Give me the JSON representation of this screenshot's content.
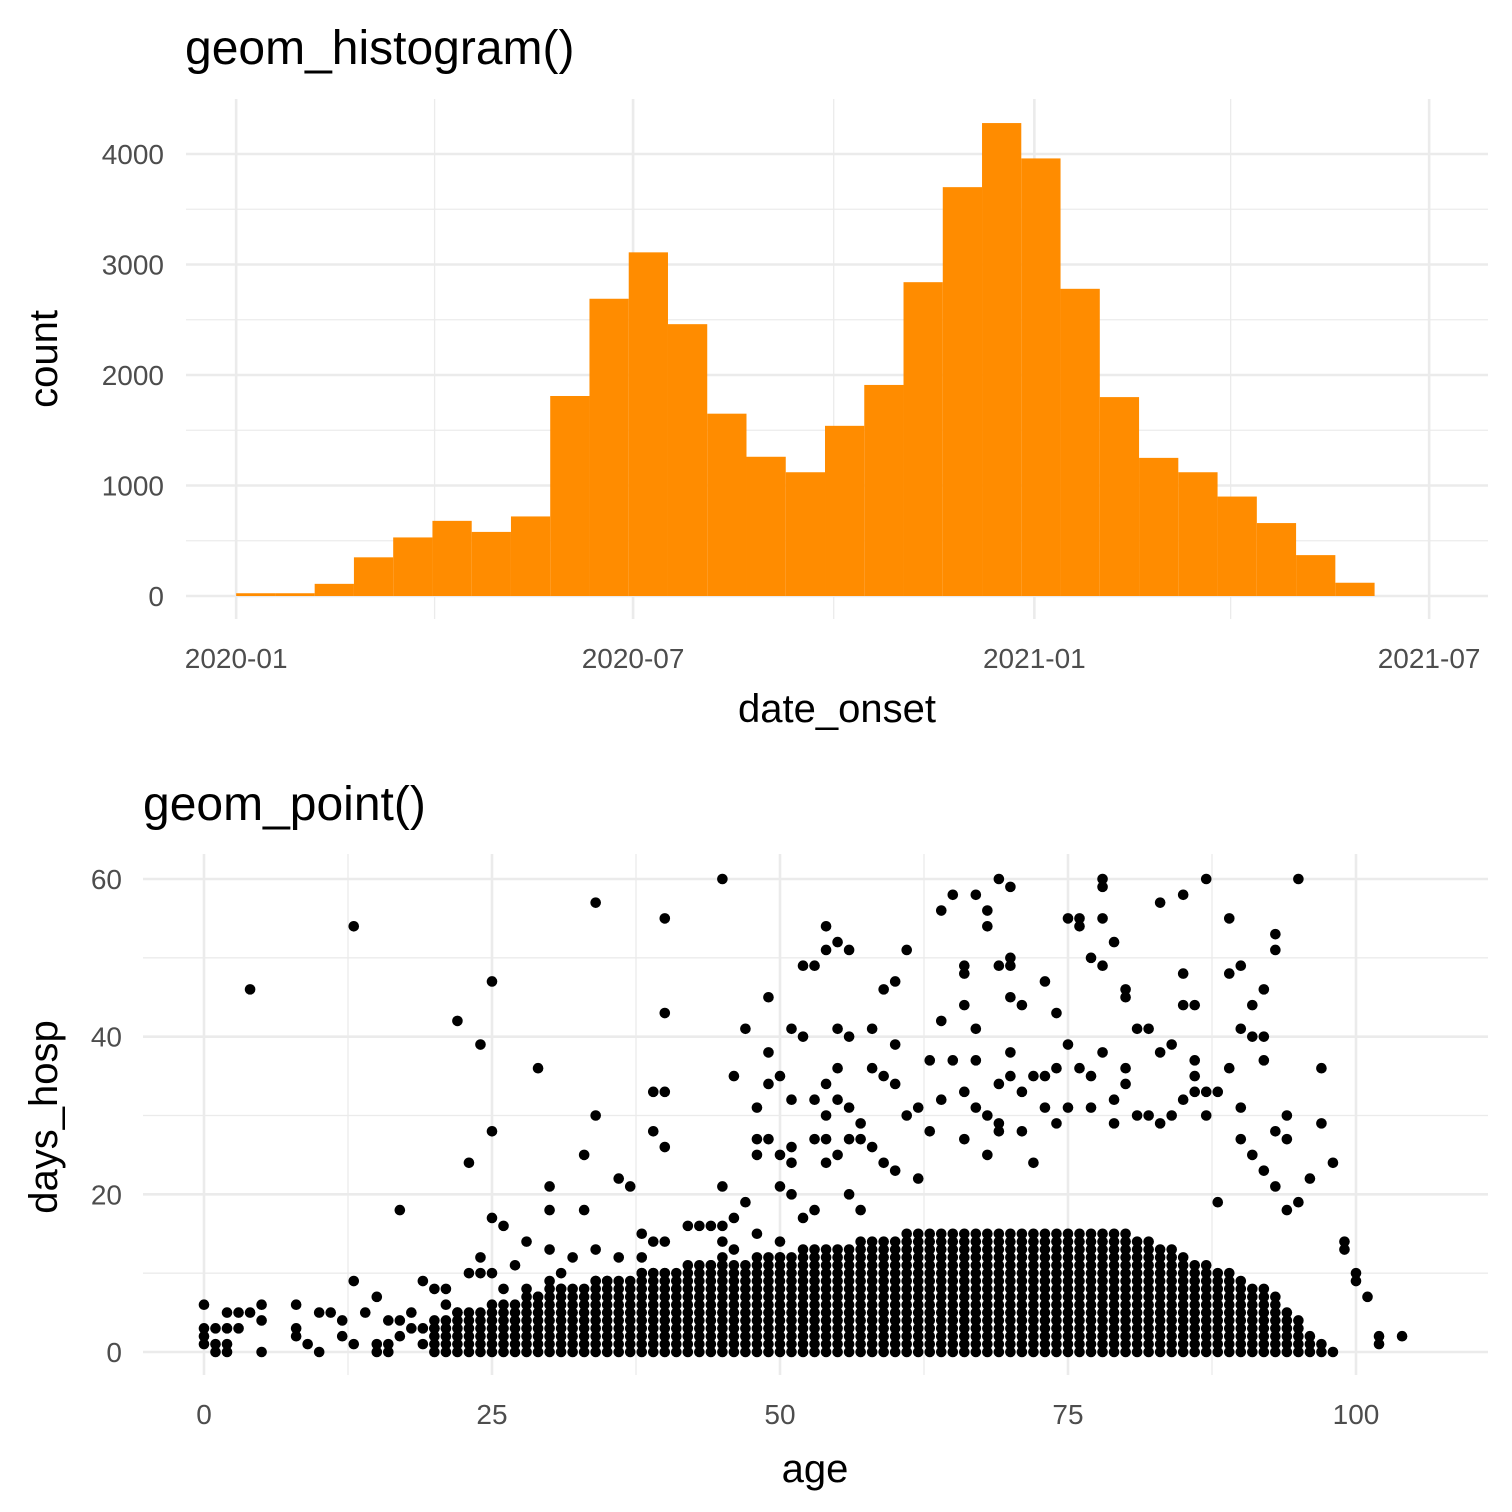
{
  "chart_data": [
    {
      "type": "bar",
      "subtype": "histogram",
      "title": "geom_histogram()",
      "xlabel": "date_onset",
      "ylabel": "count",
      "x_ticks": [
        "2020-01",
        "2020-07",
        "2021-01",
        "2021-07"
      ],
      "y_ticks": [
        "0",
        "1000",
        "2000",
        "3000",
        "4000"
      ],
      "ylim": [
        0,
        4400
      ],
      "grid": true,
      "fill_color": "#ff8c00",
      "bins": [
        {
          "start": "2020-01-01",
          "end": "2020-01-19",
          "count": 25
        },
        {
          "start": "2020-01-19",
          "end": "2020-02-06",
          "count": 25
        },
        {
          "start": "2020-02-06",
          "end": "2020-02-24",
          "count": 110
        },
        {
          "start": "2020-02-24",
          "end": "2020-03-13",
          "count": 350
        },
        {
          "start": "2020-03-13",
          "end": "2020-03-31",
          "count": 530
        },
        {
          "start": "2020-03-31",
          "end": "2020-04-18",
          "count": 680
        },
        {
          "start": "2020-04-18",
          "end": "2020-05-06",
          "count": 580
        },
        {
          "start": "2020-05-06",
          "end": "2020-05-24",
          "count": 720
        },
        {
          "start": "2020-05-24",
          "end": "2020-06-11",
          "count": 1810
        },
        {
          "start": "2020-06-11",
          "end": "2020-06-29",
          "count": 2690
        },
        {
          "start": "2020-06-29",
          "end": "2020-07-17",
          "count": 3110
        },
        {
          "start": "2020-07-17",
          "end": "2020-08-04",
          "count": 2460
        },
        {
          "start": "2020-08-04",
          "end": "2020-08-22",
          "count": 1650
        },
        {
          "start": "2020-08-22",
          "end": "2020-09-09",
          "count": 1260
        },
        {
          "start": "2020-09-09",
          "end": "2020-09-27",
          "count": 1120
        },
        {
          "start": "2020-09-27",
          "end": "2020-10-15",
          "count": 1540
        },
        {
          "start": "2020-10-15",
          "end": "2020-11-02",
          "count": 1910
        },
        {
          "start": "2020-11-02",
          "end": "2020-11-20",
          "count": 2840
        },
        {
          "start": "2020-11-20",
          "end": "2020-12-08",
          "count": 3700
        },
        {
          "start": "2020-12-08",
          "end": "2020-12-26",
          "count": 4280
        },
        {
          "start": "2020-12-26",
          "end": "2021-01-13",
          "count": 3960
        },
        {
          "start": "2021-01-13",
          "end": "2021-01-31",
          "count": 2780
        },
        {
          "start": "2021-01-31",
          "end": "2021-02-18",
          "count": 1800
        },
        {
          "start": "2021-02-18",
          "end": "2021-03-08",
          "count": 1250
        },
        {
          "start": "2021-03-08",
          "end": "2021-03-26",
          "count": 1120
        },
        {
          "start": "2021-03-26",
          "end": "2021-04-13",
          "count": 900
        },
        {
          "start": "2021-04-13",
          "end": "2021-05-01",
          "count": 660
        },
        {
          "start": "2021-05-01",
          "end": "2021-05-19",
          "count": 370
        },
        {
          "start": "2021-05-19",
          "end": "2021-06-06",
          "count": 120
        }
      ]
    },
    {
      "type": "scatter",
      "title": "geom_point()",
      "xlabel": "age",
      "ylabel": "days_hosp",
      "x_ticks": [
        "0",
        "25",
        "50",
        "75",
        "100"
      ],
      "y_ticks": [
        "0",
        "20",
        "40",
        "60"
      ],
      "xlim": [
        -2.5,
        109
      ],
      "ylim": [
        -1.5,
        63
      ],
      "grid": true,
      "point_color": "#000000",
      "points": [
        [
          0,
          6
        ],
        [
          0,
          3
        ],
        [
          0,
          2
        ],
        [
          0,
          1
        ],
        [
          1,
          3
        ],
        [
          1,
          1
        ],
        [
          1,
          0
        ],
        [
          2,
          5
        ],
        [
          2,
          3
        ],
        [
          2,
          1
        ],
        [
          2,
          0
        ],
        [
          3,
          5
        ],
        [
          3,
          3
        ],
        [
          4,
          46
        ],
        [
          4,
          5
        ],
        [
          5,
          6
        ],
        [
          5,
          4
        ],
        [
          5,
          0
        ],
        [
          8,
          6
        ],
        [
          8,
          3
        ],
        [
          8,
          2
        ],
        [
          9,
          1
        ],
        [
          10,
          0
        ],
        [
          10,
          5
        ],
        [
          11,
          5
        ],
        [
          12,
          4
        ],
        [
          12,
          2
        ],
        [
          13,
          54
        ],
        [
          13,
          9
        ],
        [
          13,
          1
        ],
        [
          14,
          5
        ],
        [
          15,
          7
        ],
        [
          15,
          1
        ],
        [
          15,
          0
        ],
        [
          16,
          4
        ],
        [
          16,
          1
        ],
        [
          16,
          0
        ],
        [
          17,
          18
        ],
        [
          17,
          4
        ],
        [
          17,
          2
        ],
        [
          18,
          5
        ],
        [
          18,
          3
        ],
        [
          19,
          9
        ],
        [
          19,
          3
        ],
        [
          19,
          1
        ],
        [
          20,
          8
        ],
        [
          20,
          3
        ],
        [
          21,
          8
        ],
        [
          21,
          6
        ],
        [
          22,
          42
        ],
        [
          22,
          5
        ],
        [
          23,
          24
        ],
        [
          23,
          10
        ],
        [
          24,
          39
        ],
        [
          24,
          12
        ],
        [
          24,
          10
        ],
        [
          25,
          47
        ],
        [
          25,
          28
        ],
        [
          25,
          17
        ],
        [
          25,
          10
        ],
        [
          26,
          16
        ],
        [
          26,
          8
        ],
        [
          27,
          11
        ],
        [
          28,
          14
        ],
        [
          28,
          8
        ],
        [
          29,
          36
        ],
        [
          29,
          7
        ],
        [
          30,
          21
        ],
        [
          30,
          18
        ],
        [
          30,
          13
        ],
        [
          30,
          9
        ],
        [
          31,
          10
        ],
        [
          31,
          8
        ],
        [
          32,
          12
        ],
        [
          33,
          25
        ],
        [
          33,
          18
        ],
        [
          34,
          57
        ],
        [
          34,
          30
        ],
        [
          34,
          13
        ],
        [
          34,
          9
        ],
        [
          35,
          9
        ],
        [
          36,
          22
        ],
        [
          36,
          12
        ],
        [
          37,
          21
        ],
        [
          38,
          15
        ],
        [
          38,
          12
        ],
        [
          38,
          10
        ],
        [
          39,
          33
        ],
        [
          39,
          28
        ],
        [
          39,
          14
        ],
        [
          39,
          10
        ],
        [
          40,
          55
        ],
        [
          40,
          43
        ],
        [
          40,
          33
        ],
        [
          40,
          26
        ],
        [
          40,
          14
        ],
        [
          40,
          10
        ],
        [
          41,
          8
        ],
        [
          42,
          16
        ],
        [
          43,
          16
        ],
        [
          44,
          16
        ],
        [
          44,
          11
        ],
        [
          45,
          60
        ],
        [
          45,
          21
        ],
        [
          45,
          16
        ],
        [
          45,
          14
        ],
        [
          45,
          12
        ],
        [
          45,
          11
        ],
        [
          46,
          35
        ],
        [
          46,
          17
        ],
        [
          46,
          13
        ],
        [
          47,
          41
        ],
        [
          47,
          19
        ],
        [
          48,
          31
        ],
        [
          48,
          27
        ],
        [
          48,
          25
        ],
        [
          48,
          15
        ],
        [
          49,
          45
        ],
        [
          49,
          38
        ],
        [
          49,
          34
        ],
        [
          49,
          27
        ],
        [
          50,
          35
        ],
        [
          50,
          25
        ],
        [
          50,
          21
        ],
        [
          50,
          14
        ],
        [
          50,
          12
        ],
        [
          51,
          41
        ],
        [
          51,
          32
        ],
        [
          51,
          26
        ],
        [
          51,
          24
        ],
        [
          51,
          20
        ],
        [
          52,
          49
        ],
        [
          52,
          40
        ],
        [
          52,
          17
        ],
        [
          53,
          49
        ],
        [
          53,
          32
        ],
        [
          53,
          27
        ],
        [
          53,
          18
        ],
        [
          54,
          54
        ],
        [
          54,
          51
        ],
        [
          54,
          34
        ],
        [
          54,
          30
        ],
        [
          54,
          27
        ],
        [
          54,
          24
        ],
        [
          55,
          52
        ],
        [
          55,
          41
        ],
        [
          55,
          36
        ],
        [
          55,
          32
        ],
        [
          55,
          25
        ],
        [
          56,
          51
        ],
        [
          56,
          40
        ],
        [
          56,
          31
        ],
        [
          56,
          27
        ],
        [
          56,
          20
        ],
        [
          57,
          29
        ],
        [
          57,
          27
        ],
        [
          57,
          18
        ],
        [
          58,
          41
        ],
        [
          58,
          36
        ],
        [
          58,
          26
        ],
        [
          59,
          46
        ],
        [
          59,
          35
        ],
        [
          59,
          24
        ],
        [
          60,
          47
        ],
        [
          60,
          39
        ],
        [
          60,
          34
        ],
        [
          60,
          23
        ],
        [
          61,
          51
        ],
        [
          61,
          30
        ],
        [
          62,
          31
        ],
        [
          62,
          22
        ],
        [
          63,
          37
        ],
        [
          63,
          28
        ],
        [
          64,
          56
        ],
        [
          64,
          42
        ],
        [
          64,
          32
        ],
        [
          65,
          58
        ],
        [
          65,
          37
        ],
        [
          66,
          49
        ],
        [
          66,
          48
        ],
        [
          66,
          44
        ],
        [
          66,
          33
        ],
        [
          66,
          27
        ],
        [
          67,
          58
        ],
        [
          67,
          41
        ],
        [
          67,
          37
        ],
        [
          67,
          31
        ],
        [
          68,
          56
        ],
        [
          68,
          54
        ],
        [
          68,
          30
        ],
        [
          68,
          25
        ],
        [
          69,
          60
        ],
        [
          69,
          49
        ],
        [
          69,
          34
        ],
        [
          69,
          29
        ],
        [
          69,
          28
        ],
        [
          70,
          59
        ],
        [
          70,
          50
        ],
        [
          70,
          49
        ],
        [
          70,
          45
        ],
        [
          70,
          38
        ],
        [
          70,
          35
        ],
        [
          71,
          44
        ],
        [
          71,
          33
        ],
        [
          71,
          28
        ],
        [
          72,
          35
        ],
        [
          72,
          24
        ],
        [
          73,
          47
        ],
        [
          73,
          35
        ],
        [
          73,
          31
        ],
        [
          74,
          43
        ],
        [
          74,
          36
        ],
        [
          74,
          29
        ],
        [
          75,
          55
        ],
        [
          75,
          39
        ],
        [
          75,
          31
        ],
        [
          76,
          55
        ],
        [
          76,
          54
        ],
        [
          76,
          36
        ],
        [
          77,
          50
        ],
        [
          77,
          35
        ],
        [
          77,
          31
        ],
        [
          78,
          60
        ],
        [
          78,
          59
        ],
        [
          78,
          55
        ],
        [
          78,
          49
        ],
        [
          78,
          38
        ],
        [
          79,
          52
        ],
        [
          79,
          32
        ],
        [
          79,
          29
        ],
        [
          80,
          46
        ],
        [
          80,
          45
        ],
        [
          80,
          36
        ],
        [
          80,
          34
        ],
        [
          81,
          41
        ],
        [
          81,
          30
        ],
        [
          82,
          41
        ],
        [
          82,
          30
        ],
        [
          83,
          57
        ],
        [
          83,
          38
        ],
        [
          83,
          29
        ],
        [
          84,
          39
        ],
        [
          84,
          30
        ],
        [
          85,
          58
        ],
        [
          85,
          48
        ],
        [
          85,
          44
        ],
        [
          85,
          32
        ],
        [
          86,
          44
        ],
        [
          86,
          37
        ],
        [
          86,
          35
        ],
        [
          86,
          33
        ],
        [
          87,
          60
        ],
        [
          87,
          33
        ],
        [
          87,
          30
        ],
        [
          88,
          33
        ],
        [
          88,
          19
        ],
        [
          89,
          55
        ],
        [
          89,
          48
        ],
        [
          89,
          36
        ],
        [
          90,
          49
        ],
        [
          90,
          41
        ],
        [
          90,
          31
        ],
        [
          90,
          27
        ],
        [
          91,
          40
        ],
        [
          91,
          44
        ],
        [
          91,
          25
        ],
        [
          92,
          46
        ],
        [
          92,
          40
        ],
        [
          92,
          37
        ],
        [
          92,
          23
        ],
        [
          93,
          53
        ],
        [
          93,
          51
        ],
        [
          93,
          28
        ],
        [
          93,
          21
        ],
        [
          94,
          30
        ],
        [
          94,
          27
        ],
        [
          94,
          18
        ],
        [
          95,
          60
        ],
        [
          95,
          19
        ],
        [
          96,
          22
        ],
        [
          97,
          36
        ],
        [
          97,
          29
        ],
        [
          98,
          24
        ],
        [
          99,
          14
        ],
        [
          99,
          13
        ],
        [
          100,
          10
        ],
        [
          100,
          9
        ],
        [
          101,
          7
        ],
        [
          102,
          2
        ],
        [
          102,
          1
        ],
        [
          104,
          2
        ]
      ]
    }
  ]
}
